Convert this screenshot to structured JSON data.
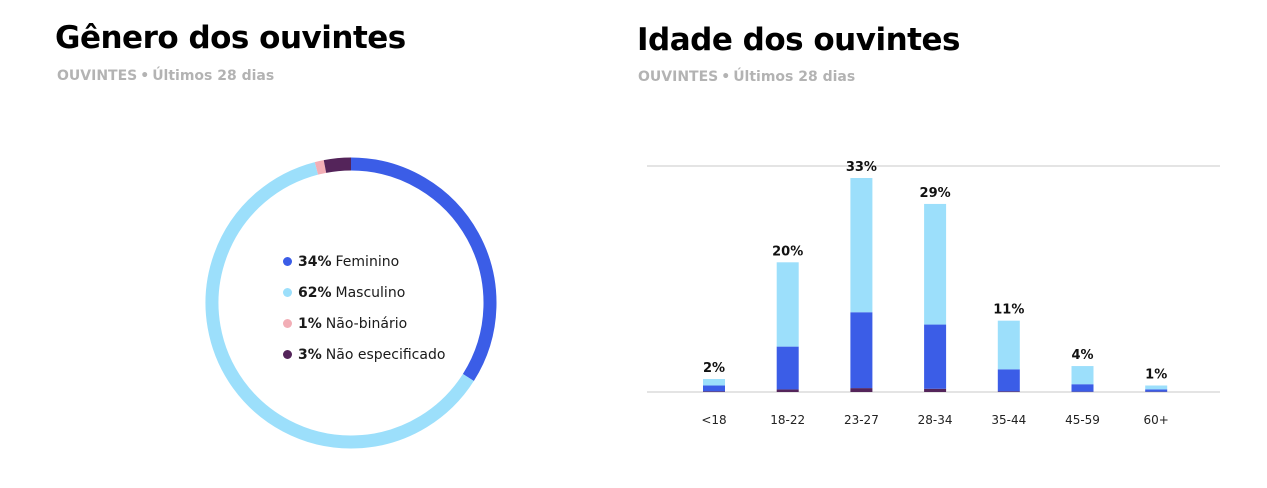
{
  "gender": {
    "title": "Gênero dos ouvintes",
    "subtitle": {
      "label": "OUVINTES",
      "period": "Últimos 28 dias"
    }
  },
  "age": {
    "title": "Idade dos ouvintes",
    "subtitle": {
      "label": "OUVINTES",
      "period": "Últimos 28 dias"
    }
  },
  "chart_data": [
    {
      "type": "pie",
      "style": "donut",
      "title": "Gênero dos ouvintes",
      "legend_position": "center",
      "slices": [
        {
          "label": "Feminino",
          "value": 34,
          "display": "34%",
          "color": "#3b5de7"
        },
        {
          "label": "Masculino",
          "value": 62,
          "display": "62%",
          "color": "#9cdffb"
        },
        {
          "label": "Não-binário",
          "value": 1,
          "display": "1%",
          "color": "#f2aeb6"
        },
        {
          "label": "Não especificado",
          "value": 3,
          "display": "3%",
          "color": "#54245a"
        }
      ]
    },
    {
      "type": "bar",
      "stacked": true,
      "title": "Idade dos ouvintes",
      "categories": [
        "<18",
        "18-22",
        "23-27",
        "28-34",
        "35-44",
        "45-59",
        "60+"
      ],
      "totals": [
        2,
        20,
        33,
        29,
        11,
        4,
        1
      ],
      "total_labels": [
        "2%",
        "20%",
        "33%",
        "29%",
        "11%",
        "4%",
        "1%"
      ],
      "ylim": [
        0,
        35
      ],
      "grid": "top line only",
      "series": [
        {
          "values": [
            0.1,
            0.4,
            0.6,
            0.5,
            0.1,
            0.05,
            0.05
          ],
          "color": "#54245a"
        },
        {
          "values": [
            0.9,
            6.6,
            11.7,
            9.9,
            3.4,
            1.15,
            0.35
          ],
          "color": "#3b5de7"
        },
        {
          "values": [
            1.0,
            13.0,
            20.7,
            18.6,
            7.5,
            2.8,
            0.6
          ],
          "color": "#9cdffb"
        }
      ]
    }
  ]
}
